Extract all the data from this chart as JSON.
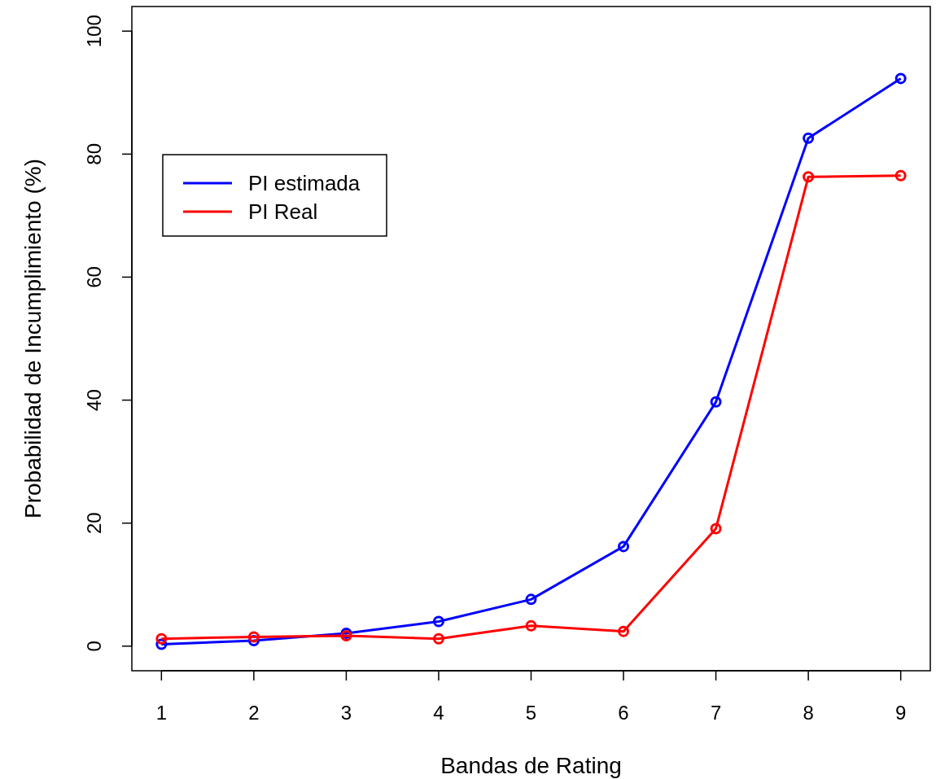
{
  "chart_data": {
    "type": "line",
    "xlabel": "Bandas de Rating",
    "ylabel": "Probabilidad de Incumplimiento (%)",
    "x": [
      1,
      2,
      3,
      4,
      5,
      6,
      7,
      8,
      9
    ],
    "series": [
      {
        "name": "PI estimada",
        "color": "#0000ff",
        "values": [
          0.3,
          0.9,
          2.1,
          4.0,
          7.6,
          16.2,
          39.7,
          82.6,
          92.3
        ]
      },
      {
        "name": "PI Real",
        "color": "#ff0000",
        "values": [
          1.2,
          1.5,
          1.7,
          1.2,
          3.3,
          2.4,
          19.1,
          76.3,
          76.5
        ]
      }
    ],
    "xlim": [
      0.68,
      9.32
    ],
    "xticks": [
      1,
      2,
      3,
      4,
      5,
      6,
      7,
      8,
      9
    ],
    "ylim": [
      -4,
      104
    ],
    "yticks": [
      0,
      20,
      40,
      60,
      80,
      100
    ],
    "grid": false,
    "legend": "top left",
    "marker": "circle",
    "line_style": "solid"
  }
}
